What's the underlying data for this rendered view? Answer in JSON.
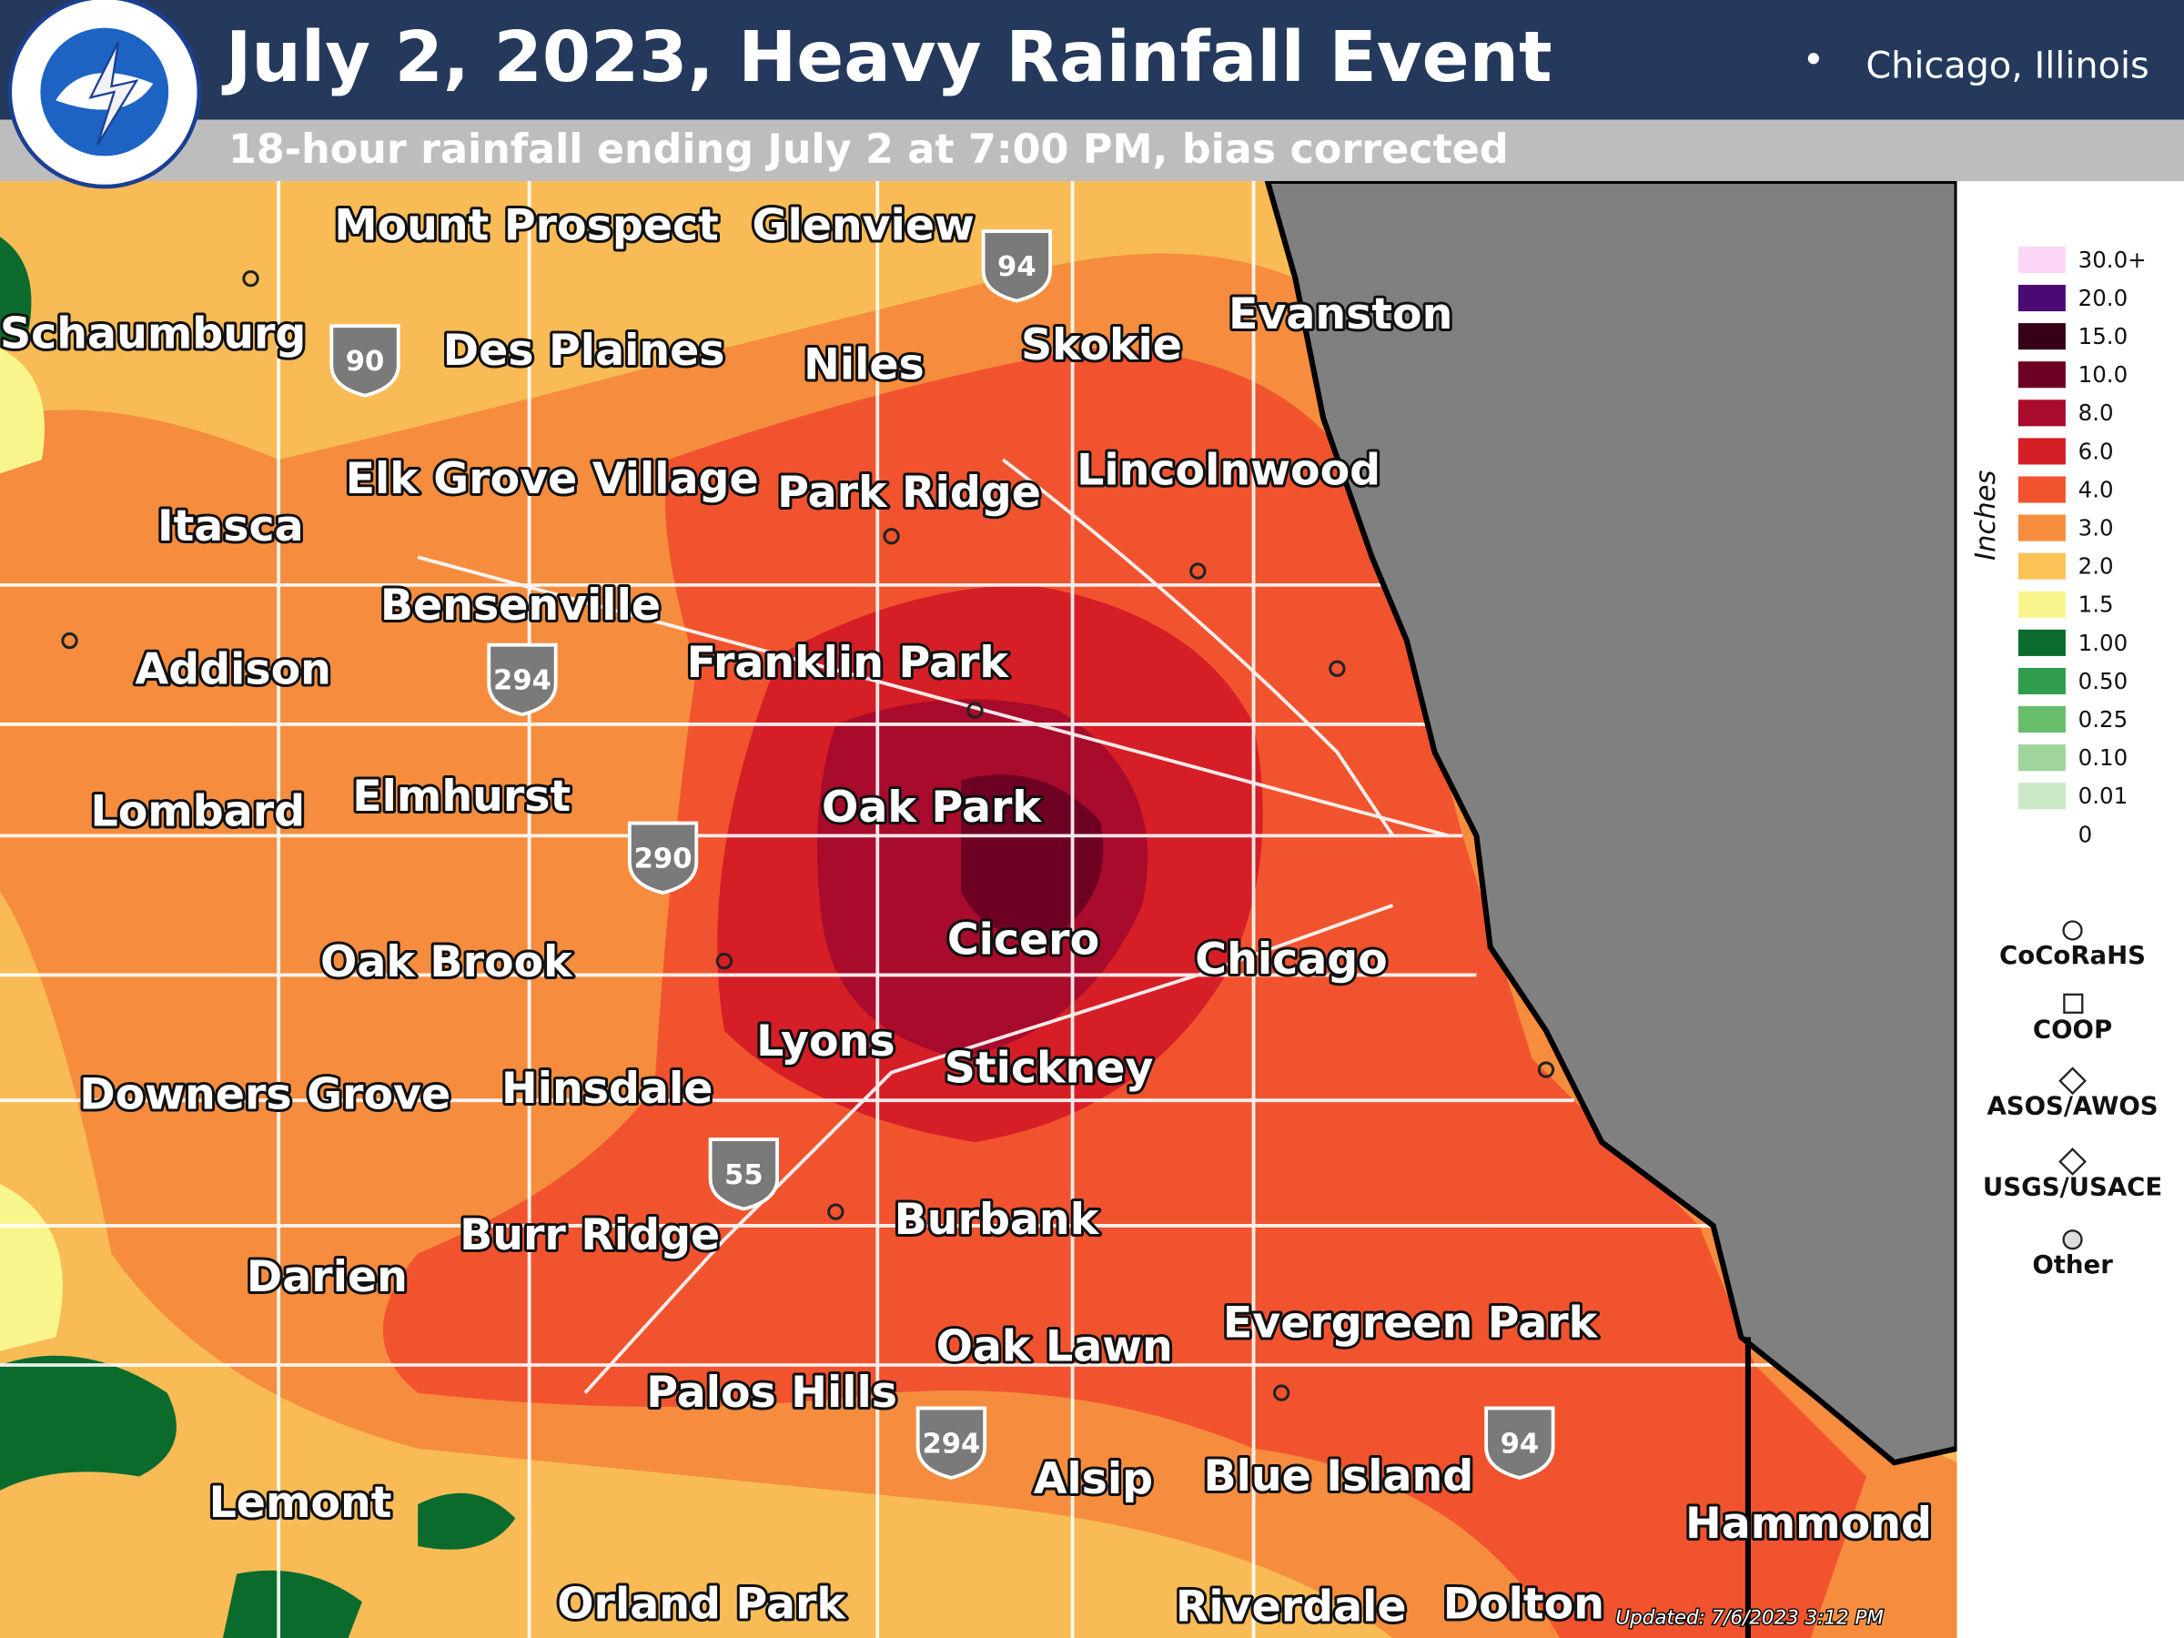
{
  "header": {
    "title": "July 2, 2023, Heavy Rainfall Event",
    "subtitle": "18-hour rainfall ending July 2 at 7:00 PM, bias corrected",
    "location": "Chicago, Illinois"
  },
  "cities": [
    "Mount Prospect",
    "Glenview",
    "Schaumburg",
    "Des Plaines",
    "Niles",
    "Skokie",
    "Evanston",
    "Elk Grove Village",
    "Park Ridge",
    "Lincolnwood",
    "Itasca",
    "Bensenville",
    "Franklin Park",
    "Addison",
    "Oak Park",
    "Lombard",
    "Elmhurst",
    "Cicero",
    "Chicago",
    "Oak Brook",
    "Lyons",
    "Stickney",
    "Downers Grove",
    "Hinsdale",
    "Burbank",
    "Burr Ridge",
    "Darien",
    "Evergreen Park",
    "Oak Lawn",
    "Palos Hills",
    "Alsip",
    "Blue Island",
    "Lemont",
    "Hammond",
    "Orland Park",
    "Riverdale",
    "Dolton"
  ],
  "highways": [
    "94",
    "90",
    "294",
    "290",
    "55",
    "294",
    "94"
  ],
  "legend": {
    "title": "Inches",
    "items": [
      {
        "label": "30.0+",
        "color": "#fcd7f7"
      },
      {
        "label": "20.0",
        "color": "#4b0a73"
      },
      {
        "label": "15.0",
        "color": "#350018"
      },
      {
        "label": "10.0",
        "color": "#6d0023"
      },
      {
        "label": "8.0",
        "color": "#a80b2b"
      },
      {
        "label": "6.0",
        "color": "#d61e26"
      },
      {
        "label": "4.0",
        "color": "#f2532f"
      },
      {
        "label": "3.0",
        "color": "#f68d3e"
      },
      {
        "label": "2.0",
        "color": "#fbc258"
      },
      {
        "label": "1.5",
        "color": "#f8f58d"
      },
      {
        "label": "1.00",
        "color": "#0a6b2d"
      },
      {
        "label": "0.50",
        "color": "#2f9d4b"
      },
      {
        "label": "0.25",
        "color": "#68bd6a"
      },
      {
        "label": "0.10",
        "color": "#9dd59a"
      },
      {
        "label": "0.01",
        "color": "#cbe9c6"
      },
      {
        "label": "0",
        "color": "#ffffff"
      }
    ]
  },
  "symbols": [
    "CoCoRaHS",
    "COOP",
    "ASOS/AWOS",
    "USGS/USACE",
    "Other"
  ],
  "updated": "Updated: 7/6/2023 3:12 PM"
}
